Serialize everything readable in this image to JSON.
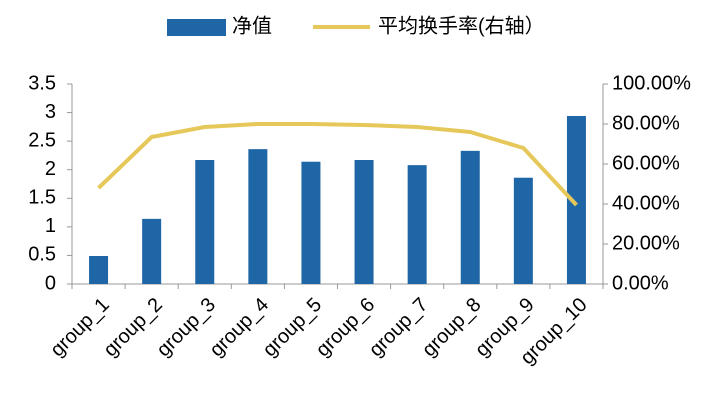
{
  "chart_data": {
    "type": "bar",
    "categories": [
      "group_1",
      "group_2",
      "group_3",
      "group_4",
      "group_5",
      "group_6",
      "group_7",
      "group_8",
      "group_9",
      "group_10"
    ],
    "series": [
      {
        "name": "净值",
        "color": "#1f66a6",
        "type": "bar",
        "values": [
          0.49,
          1.14,
          2.17,
          2.36,
          2.14,
          2.17,
          2.08,
          2.33,
          1.86,
          2.94
        ]
      },
      {
        "name": "平均换手率(右轴）",
        "color": "#e6c85a",
        "type": "line",
        "axis": "y2",
        "values": [
          48,
          73.5,
          78.5,
          80,
          80,
          79.5,
          78.5,
          76,
          68,
          39.5
        ]
      }
    ],
    "ylim": [
      0,
      3.5
    ],
    "yticks": [
      0,
      0.5,
      1,
      1.5,
      2,
      2.5,
      3,
      3.5
    ],
    "y2lim": [
      0,
      100
    ],
    "y2ticks": [
      {
        "value": 0,
        "label": "0.00%"
      },
      {
        "value": 20,
        "label": "20.00%"
      },
      {
        "value": 40,
        "label": "40.00%"
      },
      {
        "value": 60,
        "label": "60.00%"
      },
      {
        "value": 80,
        "label": "80.00%"
      },
      {
        "value": 100,
        "label": "100.00%"
      }
    ],
    "grid": false
  }
}
